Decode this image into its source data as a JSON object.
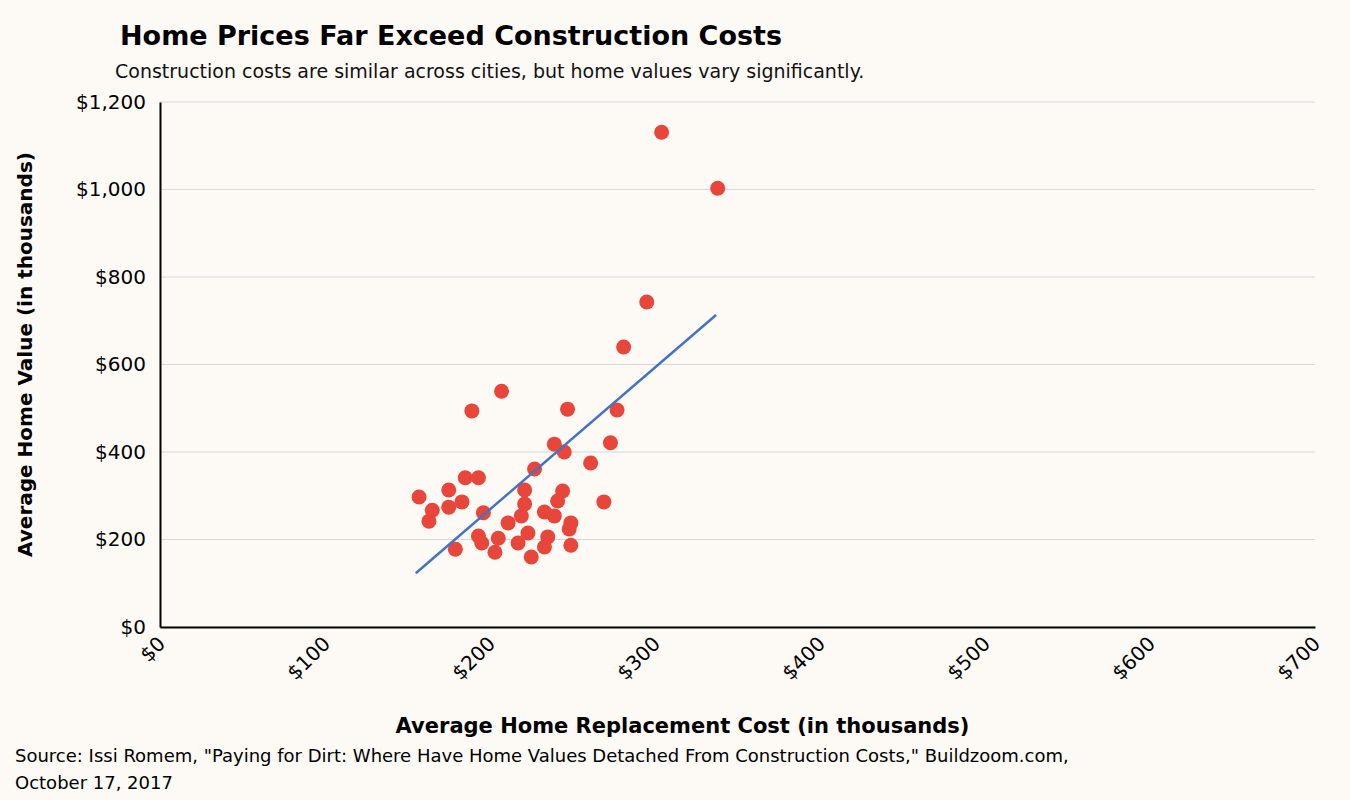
{
  "chart_data": {
    "type": "scatter",
    "title": "Home Prices Far Exceed Construction Costs",
    "subtitle": "Construction costs are similar across cities, but home values vary significantly.",
    "x_label": "Average Home Replacement Cost (in thousands)",
    "y_label": "Average Home Value (in thousands)",
    "source": [
      "Source: Issi Romem, \"Paying for Dirt: Where Have Home Values Detached From Construction Costs,\" Buildzoom.com,",
      "October 17, 2017"
    ],
    "xlim": [
      0,
      700
    ],
    "ylim": [
      0,
      1200
    ],
    "xticks": [
      {
        "value": 0,
        "label": "$0"
      },
      {
        "value": 100,
        "label": "$100"
      },
      {
        "value": 200,
        "label": "$200"
      },
      {
        "value": 300,
        "label": "$300"
      },
      {
        "value": 400,
        "label": "$400"
      },
      {
        "value": 500,
        "label": "$500"
      },
      {
        "value": 600,
        "label": "$600"
      },
      {
        "value": 700,
        "label": "$700"
      }
    ],
    "yticks": [
      {
        "value": 0,
        "label": "$0"
      },
      {
        "value": 200,
        "label": "$200"
      },
      {
        "value": 400,
        "label": "$400"
      },
      {
        "value": 600,
        "label": "$600"
      },
      {
        "value": 800,
        "label": "$800"
      },
      {
        "value": 1000,
        "label": "$1,000"
      },
      {
        "value": 1200,
        "label": "$1,200"
      }
    ],
    "grid": true,
    "series": [
      {
        "type": "scatter",
        "marker": "circle",
        "color": "#e8463a",
        "x": [
          157,
          163,
          165,
          175,
          175,
          179,
          183,
          185,
          189,
          193,
          193,
          195,
          196,
          203,
          205,
          207,
          211,
          217,
          219,
          221,
          221,
          223,
          225,
          227,
          233,
          233,
          235,
          239,
          239,
          241,
          244,
          245,
          247,
          248,
          249,
          249,
          261,
          269,
          273,
          277,
          281,
          295,
          304,
          338
        ],
        "values": [
          297,
          242,
          267,
          313,
          274,
          178,
          286,
          341,
          494,
          341,
          208,
          192,
          261,
          171,
          203,
          539,
          238,
          192,
          254,
          313,
          281,
          215,
          160,
          361,
          263,
          183,
          206,
          418,
          254,
          288,
          311,
          400,
          498,
          224,
          238,
          187,
          375,
          286,
          421,
          496,
          640,
          743,
          1131,
          1003
        ]
      },
      {
        "type": "line",
        "line_style": "solid",
        "color": "#4472c4",
        "x": [
          155,
          337
        ],
        "values": [
          123,
          713
        ]
      }
    ]
  }
}
